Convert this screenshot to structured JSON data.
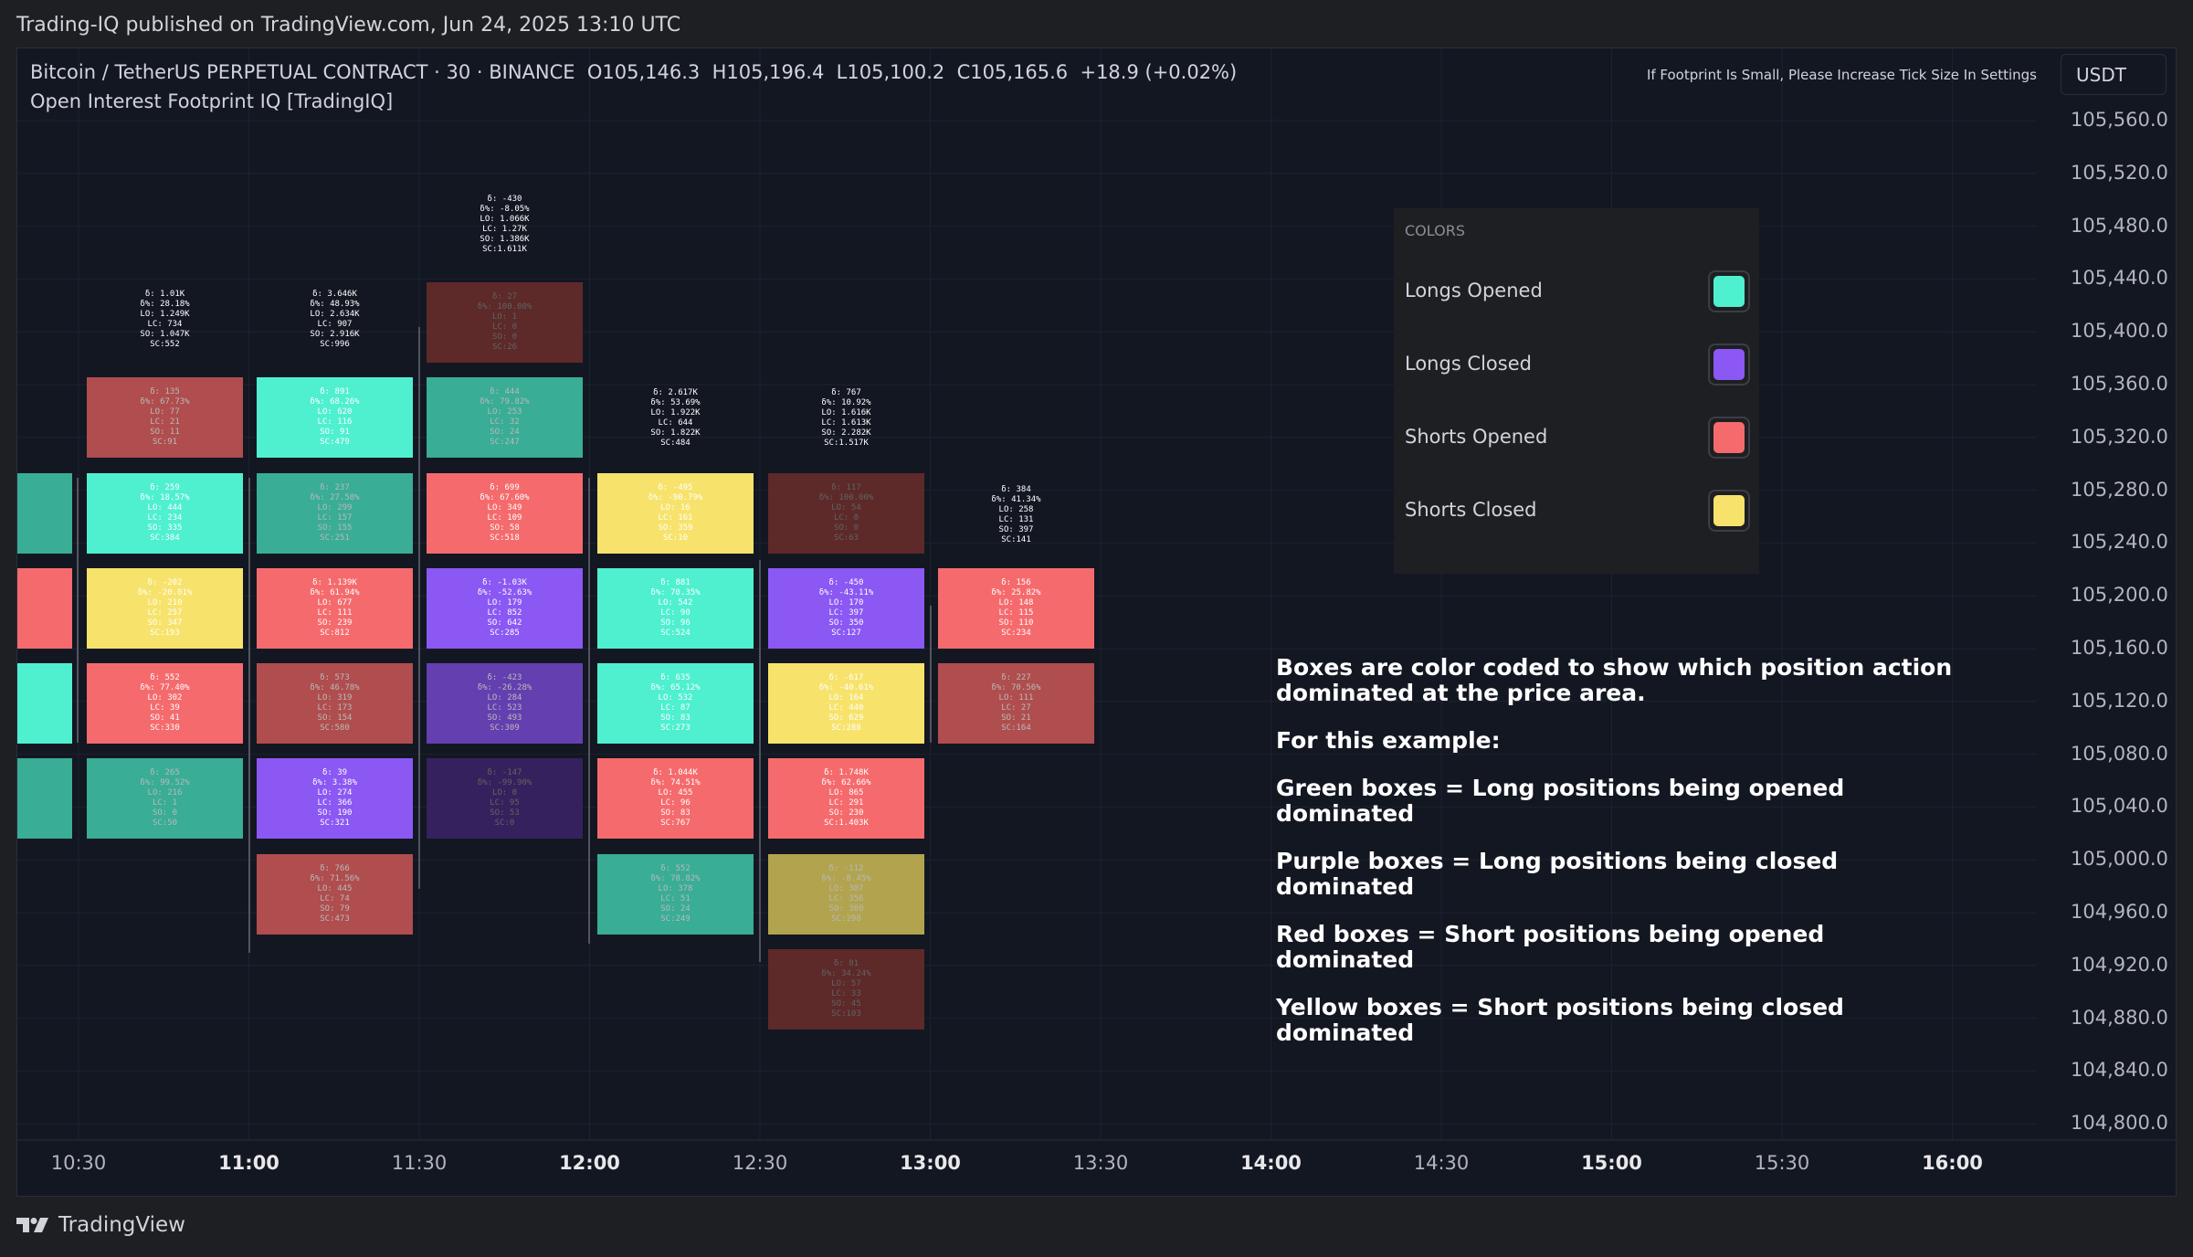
{
  "published": "Trading-IQ published on TradingView.com, Jun 24, 2025 13:10 UTC",
  "header": {
    "symbol_line": "Bitcoin / TetherUS PERPETUAL CONTRACT · 30 · BINANCE  O105,146.3  H105,196.4  L105,100.2  C105,165.6  +18.9 (+0.02%)",
    "indicator": "Open Interest Footprint IQ [TradingIQ]",
    "notice": "If Footprint Is Small, Please Increase Tick Size In Settings",
    "currency": "USDT"
  },
  "price_axis": [
    "105,560.0",
    "105,520.0",
    "105,480.0",
    "105,440.0",
    "105,400.0",
    "105,360.0",
    "105,320.0",
    "105,280.0",
    "105,240.0",
    "105,200.0",
    "105,160.0",
    "105,120.0",
    "105,080.0",
    "105,040.0",
    "105,000.0",
    "104,960.0",
    "104,920.0",
    "104,880.0",
    "104,840.0",
    "104,800.0"
  ],
  "time_axis": [
    {
      "label": "10:30",
      "bold": false
    },
    {
      "label": "11:00",
      "bold": true
    },
    {
      "label": "11:30",
      "bold": false
    },
    {
      "label": "12:00",
      "bold": true
    },
    {
      "label": "12:30",
      "bold": false
    },
    {
      "label": "13:00",
      "bold": true
    },
    {
      "label": "13:30",
      "bold": false
    },
    {
      "label": "14:00",
      "bold": true
    },
    {
      "label": "14:30",
      "bold": false
    },
    {
      "label": "15:00",
      "bold": true
    },
    {
      "label": "15:30",
      "bold": false
    },
    {
      "label": "16:00",
      "bold": true
    }
  ],
  "colors": {
    "longs_opened": "#4ff0d0",
    "longs_closed": "#8b58f4",
    "shorts_opened": "#f56b6d",
    "shorts_closed": "#f7e36c"
  },
  "legend": {
    "title": "COLORS",
    "items": [
      {
        "label": "Longs Opened",
        "color": "#4ff0d0"
      },
      {
        "label": "Longs Closed",
        "color": "#8b58f4"
      },
      {
        "label": "Shorts Opened",
        "color": "#f56b6d"
      },
      {
        "label": "Shorts Closed",
        "color": "#f7e36c"
      }
    ]
  },
  "annotation": [
    "Boxes are color coded to show which position action dominated at the price area.",
    "For this example:",
    "Green boxes = Long positions being opened dominated",
    "Purple boxes = Long positions being closed dominated",
    "Red boxes = Short positions being opened dominated",
    "Yellow boxes = Short positions being closed dominated"
  ],
  "bar_summaries": [
    {
      "bar": 1,
      "text": "δ: 1.01K\nδ%: 28.18%\nLO: 1.249K\nLC: 734\nSO: 1.047K\nSC:552"
    },
    {
      "bar": 2,
      "text": "δ: 3.646K\nδ%: 48.93%\nLO: 2.634K\nLC: 907\nSO: 2.916K\nSC:996"
    },
    {
      "bar": 3,
      "text": "δ: -430\nδ%: -8.05%\nLO: 1.066K\nLC: 1.27K\nSO: 1.386K\nSC:1.611K"
    },
    {
      "bar": 4,
      "text": "δ: 2.617K\nδ%: 53.69%\nLO: 1.922K\nLC: 644\nSO: 1.822K\nSC:484"
    },
    {
      "bar": 5,
      "text": "δ: 767\nδ%: 10.92%\nLO: 1.616K\nLC: 1.613K\nSO: 2.282K\nSC:1.517K"
    },
    {
      "bar": 6,
      "text": "δ: 384\nδ%: 41.34%\nLO: 258\nLC: 131\nSO: 397\nSC:141"
    }
  ],
  "footprint_cells": [
    {
      "bar": 1,
      "row": 1,
      "kind": "shorts_opened",
      "dim": true,
      "text": "δ: 135\nδ%: 67.73%\nLO: 77\nLC: 21\nSO: 11\nSC:91"
    },
    {
      "bar": 1,
      "row": 2,
      "kind": "longs_opened",
      "dim": false,
      "text": "δ: 259\nδ%: 18.57%\nLO: 444\nLC: 234\nSO: 335\nSC:384"
    },
    {
      "bar": 1,
      "row": 3,
      "kind": "shorts_closed",
      "dim": false,
      "text": "δ: -202\nδ%: -20.01%\nLO: 210\nLC: 257\nSO: 347\nSC:193"
    },
    {
      "bar": 1,
      "row": 4,
      "kind": "shorts_opened",
      "dim": false,
      "text": "δ: 552\nδ%: 77.40%\nLO: 302\nLC: 39\nSO: 41\nSC:330"
    },
    {
      "bar": 1,
      "row": 5,
      "kind": "longs_opened",
      "dim": true,
      "text": "δ: 265\nδ%: 99.52%\nLO: 216\nLC: 1\nSO: 0\nSC:50"
    },
    {
      "bar": 2,
      "row": 1,
      "kind": "longs_opened",
      "dim": false,
      "text": "δ: 891\nδ%: 68.26%\nLO: 620\nLC: 116\nSO: 91\nSC:479"
    },
    {
      "bar": 2,
      "row": 2,
      "kind": "longs_opened",
      "dim": true,
      "text": "δ: 237\nδ%: 27.58%\nLO: 299\nLC: 157\nSO: 155\nSC:251"
    },
    {
      "bar": 2,
      "row": 3,
      "kind": "shorts_opened",
      "dim": false,
      "text": "δ: 1.139K\nδ%: 61.94%\nLO: 677\nLC: 111\nSO: 239\nSC:812"
    },
    {
      "bar": 2,
      "row": 4,
      "kind": "shorts_opened",
      "dim": true,
      "text": "δ: 573\nδ%: 46.78%\nLO: 319\nLC: 173\nSO: 154\nSC:580"
    },
    {
      "bar": 2,
      "row": 5,
      "kind": "longs_closed",
      "dim": false,
      "text": "δ: 39\nδ%: 3.38%\nLO: 274\nLC: 366\nSO: 190\nSC:321"
    },
    {
      "bar": 2,
      "row": 6,
      "kind": "shorts_opened",
      "dim": true,
      "text": "δ: 766\nδ%: 71.56%\nLO: 445\nLC: 74\nSO: 79\nSC:473"
    },
    {
      "bar": 3,
      "row": 0,
      "kind": "shorts_opened",
      "dim": "dark",
      "text": "δ: 27\nδ%: 100.00%\nLO: 1\nLC: 0\nSO: 0\nSC:26"
    },
    {
      "bar": 3,
      "row": 1,
      "kind": "longs_opened",
      "dim": true,
      "text": "δ: 444\nδ%: 79.82%\nLO: 253\nLC: 32\nSO: 24\nSC:247"
    },
    {
      "bar": 3,
      "row": 2,
      "kind": "shorts_opened",
      "dim": false,
      "text": "δ: 699\nδ%: 67.60%\nLO: 349\nLC: 109\nSO: 58\nSC:518"
    },
    {
      "bar": 3,
      "row": 3,
      "kind": "longs_closed",
      "dim": false,
      "text": "δ: -1.03K\nδ%: -52.63%\nLO: 179\nLC: 852\nSO: 642\nSC:285"
    },
    {
      "bar": 3,
      "row": 4,
      "kind": "longs_closed",
      "dim": true,
      "text": "δ: -423\nδ%: -26.28%\nLO: 284\nLC: 523\nSO: 493\nSC:309"
    },
    {
      "bar": 3,
      "row": 5,
      "kind": "longs_closed",
      "dim": "dark",
      "text": "δ: -147\nδ%: -99.90%\nLO: 0\nLC: 95\nSO: 53\nSC:0"
    },
    {
      "bar": 4,
      "row": 2,
      "kind": "shorts_closed",
      "dim": false,
      "text": "δ: -495\nδ%: -90.79%\nLO: 16\nLC: 161\nSO: 359\nSC:10"
    },
    {
      "bar": 4,
      "row": 3,
      "kind": "longs_opened",
      "dim": false,
      "text": "δ: 881\nδ%: 70.35%\nLO: 542\nLC: 90\nSO: 96\nSC:524"
    },
    {
      "bar": 4,
      "row": 4,
      "kind": "longs_opened",
      "dim": false,
      "text": "δ: 635\nδ%: 65.12%\nLO: 532\nLC: 87\nSO: 83\nSC:273"
    },
    {
      "bar": 4,
      "row": 5,
      "kind": "shorts_opened",
      "dim": false,
      "text": "δ: 1.044K\nδ%: 74.51%\nLO: 455\nLC: 96\nSO: 83\nSC:767"
    },
    {
      "bar": 4,
      "row": 6,
      "kind": "longs_opened",
      "dim": true,
      "text": "δ: 552\nδ%: 78.82%\nLO: 378\nLC: 51\nSO: 24\nSC:249"
    },
    {
      "bar": 5,
      "row": 2,
      "kind": "shorts_opened",
      "dim": "dark",
      "text": "δ: 117\nδ%: 100.00%\nLO: 54\nLC: 0\nSO: 0\nSC:63"
    },
    {
      "bar": 5,
      "row": 3,
      "kind": "longs_closed",
      "dim": false,
      "text": "δ: -450\nδ%: -43.11%\nLO: 170\nLC: 397\nSO: 350\nSC:127"
    },
    {
      "bar": 5,
      "row": 4,
      "kind": "shorts_closed",
      "dim": false,
      "text": "δ: -617\nδ%: -40.61%\nLO: 164\nLC: 440\nSO: 629\nSC:288"
    },
    {
      "bar": 5,
      "row": 5,
      "kind": "shorts_opened",
      "dim": false,
      "text": "δ: 1.748K\nδ%: 62.66%\nLO: 865\nLC: 291\nSO: 230\nSC:1.403K"
    },
    {
      "bar": 5,
      "row": 6,
      "kind": "shorts_closed",
      "dim": true,
      "text": "δ: -112\nδ%: -8.45%\nLO: 307\nLC: 356\nSO: 360\nSC:298"
    },
    {
      "bar": 5,
      "row": 7,
      "kind": "shorts_opened",
      "dim": "dark",
      "text": "δ: 81\nδ%: 34.24%\nLO: 57\nLC: 33\nSO: 45\nSC:103"
    },
    {
      "bar": 6,
      "row": 3,
      "kind": "shorts_opened",
      "dim": false,
      "text": "δ: 156\nδ%: 25.82%\nLO: 148\nLC: 115\nSO: 110\nSC:234"
    },
    {
      "bar": 6,
      "row": 4,
      "kind": "shorts_opened",
      "dim": true,
      "text": "δ: 227\nδ%: 70.56%\nLO: 111\nLC: 27\nSO: 21\nSC:164"
    }
  ],
  "branding": "TradingView"
}
